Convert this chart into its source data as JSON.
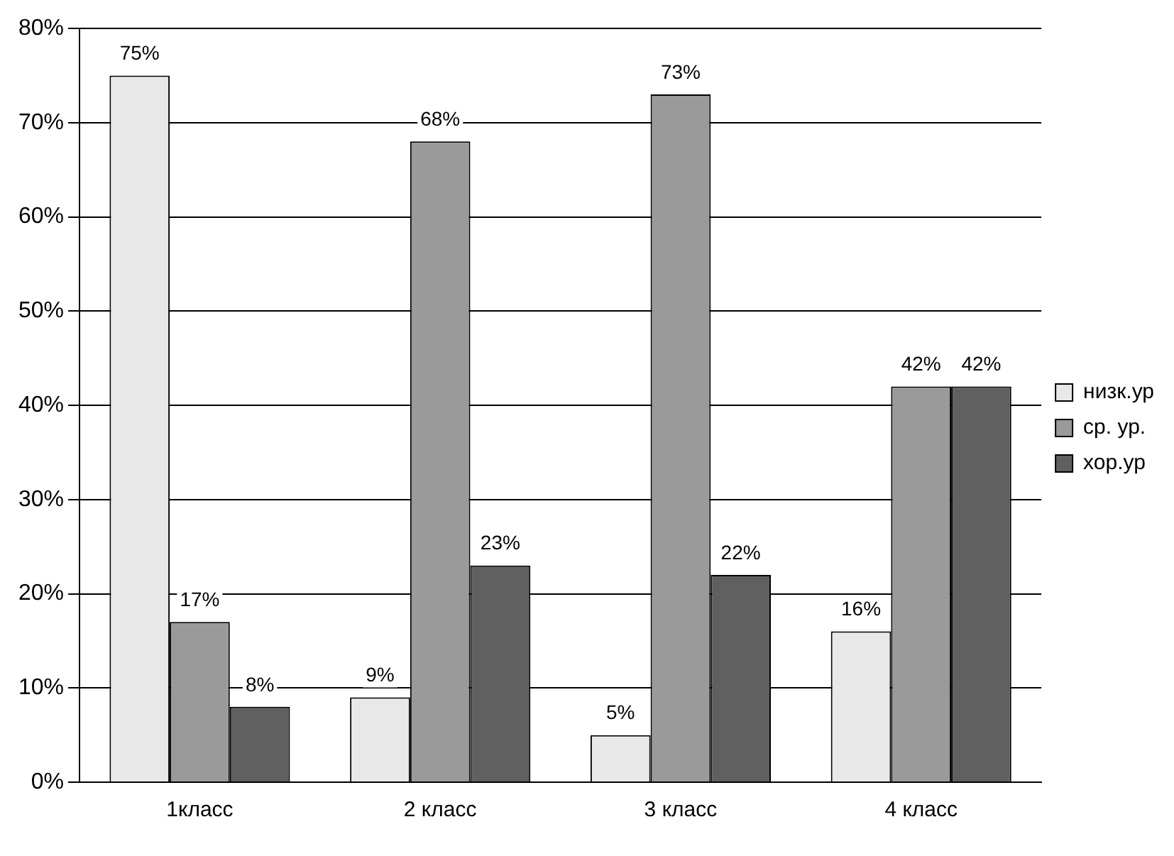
{
  "chart_data": {
    "type": "bar",
    "categories": [
      "1класс",
      "2 класс",
      "3 класс",
      "4 класс"
    ],
    "series": [
      {
        "name": "низк.ур",
        "color": "#e8e8e8",
        "values": [
          75,
          9,
          5,
          16
        ],
        "value_labels": [
          "75%",
          "9%",
          "5%",
          "16%"
        ]
      },
      {
        "name": "ср. ур.",
        "color": "#9a9a9a",
        "values": [
          17,
          68,
          73,
          42
        ],
        "value_labels": [
          "17%",
          "68%",
          "73%",
          "42%"
        ]
      },
      {
        "name": "хор.ур",
        "color": "#606060",
        "values": [
          8,
          23,
          22,
          42
        ],
        "value_labels": [
          "8%",
          "23%",
          "22%",
          "42%"
        ]
      }
    ],
    "ylim": [
      0,
      80
    ],
    "yticks": [
      {
        "value": 0,
        "label": "0%"
      },
      {
        "value": 10,
        "label": "10%"
      },
      {
        "value": 20,
        "label": "20%"
      },
      {
        "value": 30,
        "label": "30%"
      },
      {
        "value": 40,
        "label": "40%"
      },
      {
        "value": 50,
        "label": "50%"
      },
      {
        "value": 60,
        "label": "60%"
      },
      {
        "value": 70,
        "label": "70%"
      },
      {
        "value": 80,
        "label": "80%"
      }
    ],
    "grid": "y",
    "legend": "right"
  }
}
